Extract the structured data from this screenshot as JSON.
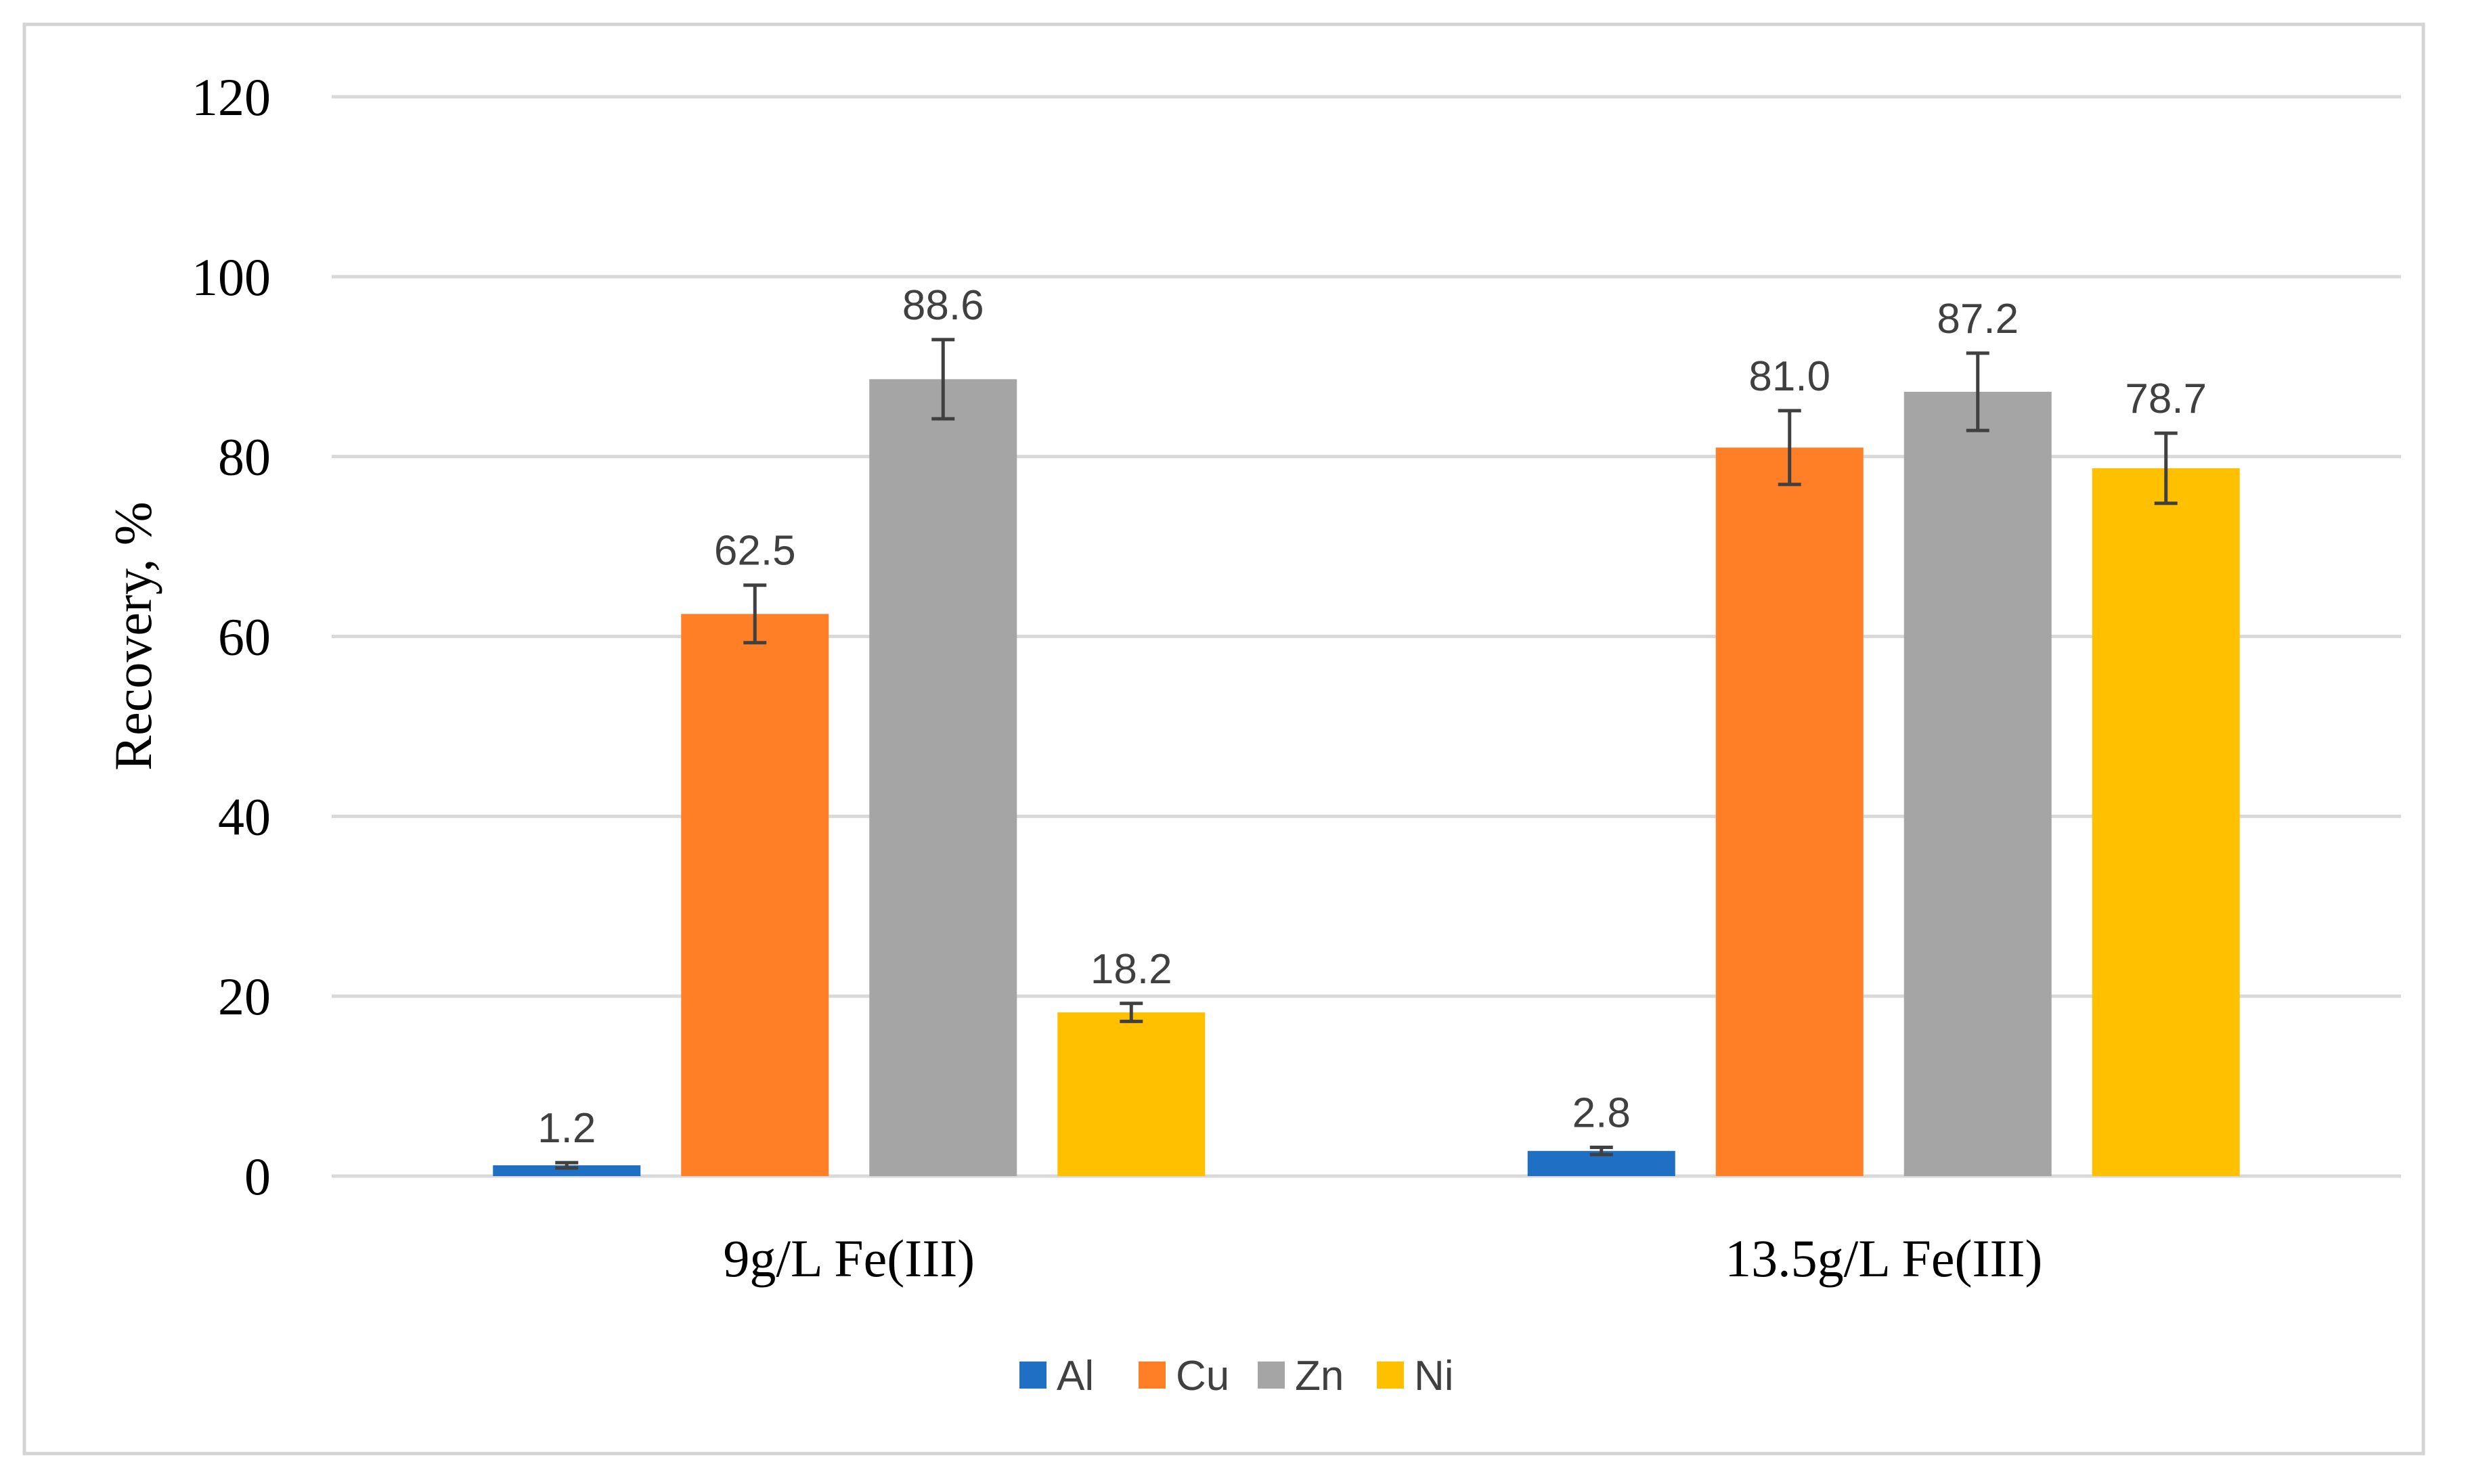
{
  "chart_data": {
    "type": "bar",
    "title": "",
    "xlabel": "",
    "ylabel": "Recovery, %",
    "ylim": [
      0,
      120
    ],
    "yticks": [
      0,
      20,
      40,
      60,
      80,
      100,
      120
    ],
    "categories": [
      "9g/L Fe(III)",
      "13.5g/L Fe(III)"
    ],
    "series": [
      {
        "name": "Al",
        "color": "#1F6FC5",
        "values": [
          1.2,
          2.8
        ],
        "labels": [
          "1.2",
          "2.8"
        ],
        "errors": [
          0.3,
          0.4
        ]
      },
      {
        "name": "Cu",
        "color": "#FF7F27",
        "values": [
          62.5,
          81.0
        ],
        "labels": [
          "62.5",
          "81.0"
        ],
        "errors": [
          3.2,
          4.1
        ]
      },
      {
        "name": "Zn",
        "color": "#A5A5A5",
        "values": [
          88.6,
          87.2
        ],
        "labels": [
          "88.6",
          "87.2"
        ],
        "errors": [
          4.4,
          4.3
        ]
      },
      {
        "name": "Ni",
        "color": "#FFC000",
        "values": [
          18.2,
          78.7
        ],
        "labels": [
          "18.2",
          "78.7"
        ],
        "errors": [
          1.0,
          3.9
        ]
      }
    ],
    "grid": true,
    "legend_position": "bottom-center"
  }
}
